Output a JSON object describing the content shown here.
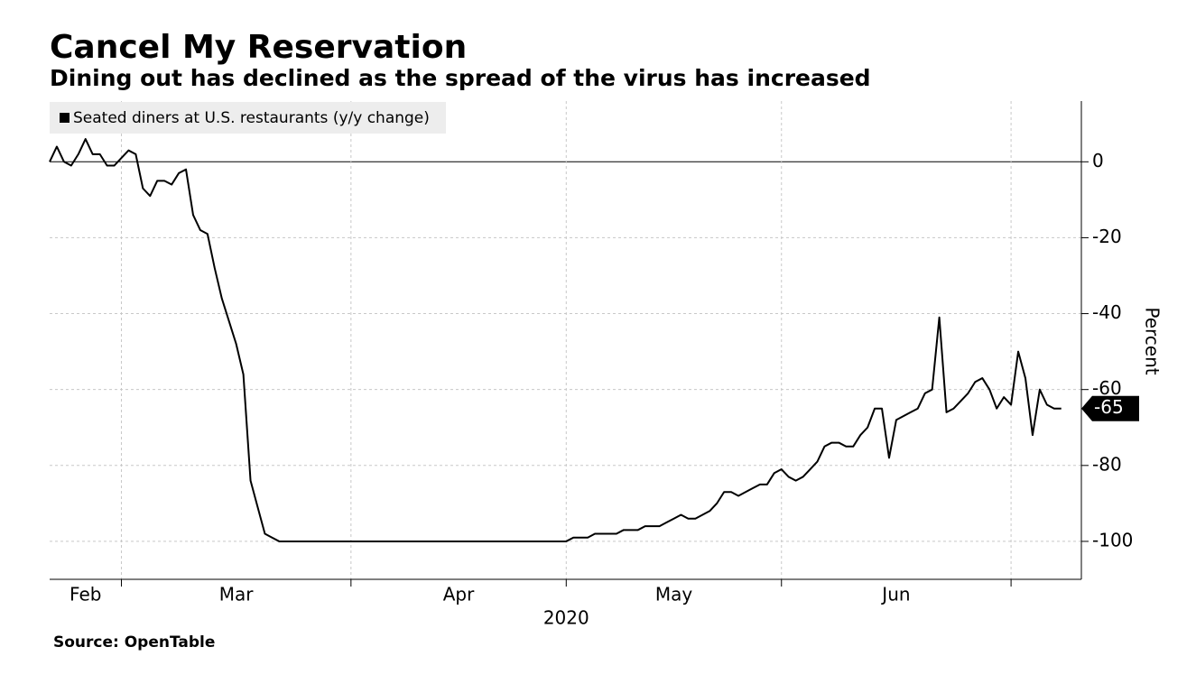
{
  "chart_data": {
    "type": "line",
    "title": "Cancel My Reservation",
    "subtitle": "Dining out has declined as the spread of the virus has increased",
    "source": "Source: OpenTable",
    "xlabel": "2020",
    "ylabel": "Percent",
    "ylim": [
      -110,
      16
    ],
    "yticks": [
      0,
      -20,
      -40,
      -60,
      -80,
      -100
    ],
    "grid": true,
    "legend": "top-left",
    "categories": [
      null,
      null,
      null,
      null,
      null,
      "Feb",
      null,
      null,
      null,
      null,
      null,
      null,
      null,
      null,
      null,
      null,
      null,
      null,
      null,
      null,
      null,
      null,
      null,
      null,
      null,
      null,
      "Mar",
      null,
      null,
      null,
      null,
      null,
      null,
      null,
      null,
      null,
      null,
      null,
      null,
      null,
      null,
      null,
      null,
      null,
      null,
      null,
      null,
      null,
      null,
      null,
      null,
      null,
      null,
      null,
      null,
      null,
      null,
      "Apr",
      null,
      null,
      null,
      null,
      null,
      null,
      null,
      null,
      null,
      null,
      null,
      null,
      null,
      null,
      null,
      null,
      null,
      null,
      null,
      null,
      null,
      null,
      null,
      null,
      null,
      null,
      null,
      null,
      null,
      "May",
      null,
      null,
      null,
      null,
      null,
      null,
      null,
      null,
      null,
      null,
      null,
      null,
      null,
      null,
      null,
      null,
      null,
      null,
      null,
      null,
      null,
      null,
      null,
      null,
      null,
      null,
      null,
      null,
      null,
      null,
      "Jun",
      null,
      null,
      null,
      null,
      null,
      null,
      null,
      null,
      null,
      null,
      null,
      null,
      null,
      null,
      null,
      null,
      null,
      null,
      null,
      null,
      null,
      null,
      null
    ],
    "series": [
      {
        "name": "Seated diners at U.S. restaurants (y/y change)",
        "color": "#000000",
        "values": [
          0,
          4,
          0,
          -1,
          2,
          6,
          2,
          2,
          -1,
          -1,
          1,
          3,
          2,
          -7,
          -9,
          -5,
          -5,
          -6,
          -3,
          -2,
          -14,
          -18,
          -19,
          -28,
          -36,
          -42,
          -48,
          -56,
          -84,
          -91,
          -98,
          -99,
          -100,
          -100,
          -100,
          -100,
          -100,
          -100,
          -100,
          -100,
          -100,
          -100,
          -100,
          -100,
          -100,
          -100,
          -100,
          -100,
          -100,
          -100,
          -100,
          -100,
          -100,
          -100,
          -100,
          -100,
          -100,
          -100,
          -100,
          -100,
          -100,
          -100,
          -100,
          -100,
          -100,
          -100,
          -100,
          -100,
          -100,
          -100,
          -100,
          -100,
          -100,
          -99,
          -99,
          -99,
          -98,
          -98,
          -98,
          -98,
          -97,
          -97,
          -97,
          -96,
          -96,
          -96,
          -95,
          -94,
          -93,
          -94,
          -94,
          -93,
          -92,
          -90,
          -87,
          -87,
          -88,
          -87,
          -86,
          -85,
          -85,
          -82,
          -81,
          -83,
          -84,
          -83,
          -81,
          -79,
          -75,
          -74,
          -74,
          -75,
          -75,
          -72,
          -70,
          -65,
          -65,
          -78,
          -68,
          -67,
          -66,
          -65,
          -61,
          -60,
          -41,
          -66,
          -65,
          -63,
          -61,
          -58,
          -57,
          -60,
          -65,
          -62,
          -64,
          -50,
          -57,
          -72,
          -60,
          -64,
          -65,
          -65
        ]
      }
    ]
  }
}
